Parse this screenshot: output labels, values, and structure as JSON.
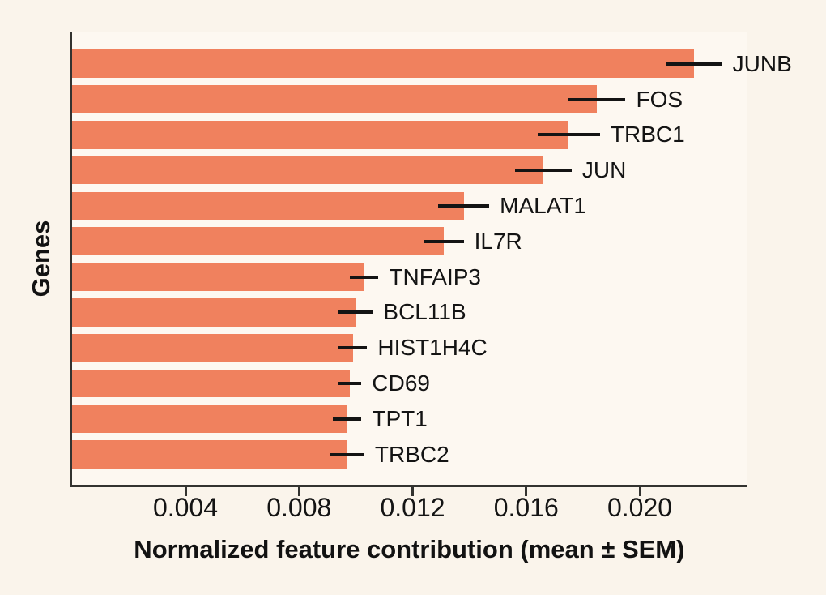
{
  "chart_data": {
    "type": "bar",
    "orientation": "horizontal",
    "title": "",
    "xlabel": "Normalized feature contribution (mean ± SEM)",
    "ylabel": "Genes",
    "categories": [
      "JUNB",
      "FOS",
      "TRBC1",
      "JUN",
      "MALAT1",
      "IL7R",
      "TNFAIP3",
      "BCL11B",
      "HIST1H4C",
      "CD69",
      "TPT1",
      "TRBC2"
    ],
    "series": [
      {
        "name": "Normalized feature contribution (mean)",
        "values": [
          0.0219,
          0.0185,
          0.0175,
          0.0166,
          0.0138,
          0.0131,
          0.0103,
          0.01,
          0.0099,
          0.0098,
          0.0097,
          0.0097
        ],
        "sem": [
          0.001,
          0.001,
          0.0011,
          0.001,
          0.0009,
          0.0007,
          0.0005,
          0.0006,
          0.0005,
          0.0004,
          0.0005,
          0.0006
        ]
      }
    ],
    "xticks": [
      0.004,
      0.008,
      0.012,
      0.016,
      0.02
    ],
    "xtick_labels": [
      "0.004",
      "0.008",
      "0.012",
      "0.016",
      "0.020"
    ],
    "xlim": [
      0,
      0.0238
    ],
    "grid": false,
    "legend": "none",
    "error_bars": "horizontal, mean ± SEM, no caps",
    "colors": {
      "bar": "#f0815e",
      "background": "#faf4eb",
      "plot_background": "#fdf8f1",
      "spine": "#333330",
      "error_bar": "#141414",
      "text": "#141414"
    }
  }
}
